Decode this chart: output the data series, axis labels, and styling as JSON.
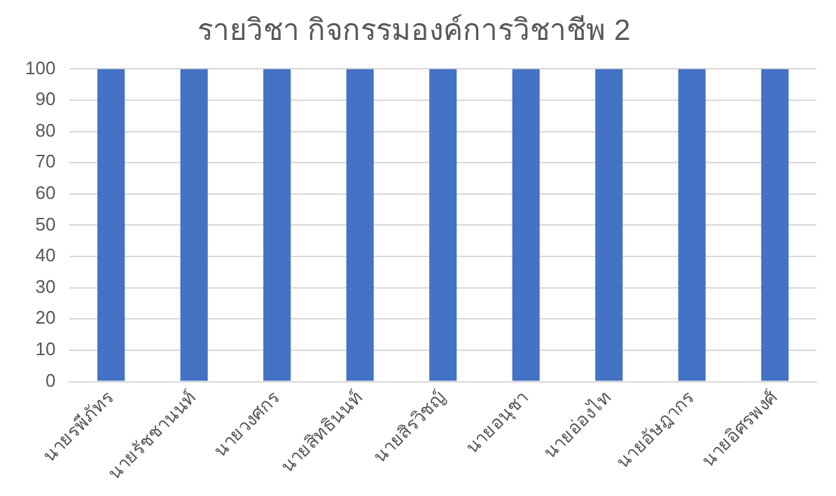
{
  "chart_data": {
    "type": "bar",
    "title": "รายวิชา กิจกรรมองค์การวิชาชีพ 2",
    "categories": [
      "นายรพีภัทร",
      "นายรัชชานนท์",
      "นายวงศกร",
      "นายสิทธินนท์",
      "นายสิรวิชญ์",
      "นายอนุชา",
      "นายอ่องไท",
      "นายอัษฎากร",
      "นายอิศรพงศ์"
    ],
    "values": [
      100,
      100,
      100,
      100,
      100,
      100,
      100,
      100,
      100
    ],
    "color": "#4472c4",
    "ylim": [
      0,
      100
    ],
    "yticks": [
      0,
      10,
      20,
      30,
      40,
      50,
      60,
      70,
      80,
      90,
      100
    ],
    "grid": "y",
    "legend": false
  }
}
